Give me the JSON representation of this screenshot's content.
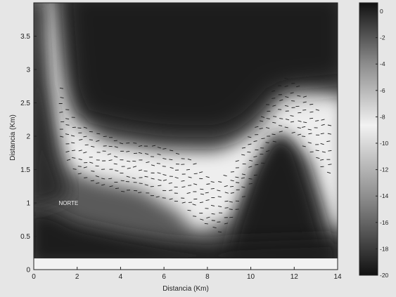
{
  "chart_data": {
    "type": "heatmap",
    "xlabel": "Distancia (Km)",
    "ylabel": "Distancia (Km)",
    "xlim": [
      0,
      14
    ],
    "ylim": [
      0,
      4
    ],
    "x_ticks": [
      0,
      2,
      4,
      6,
      8,
      10,
      12,
      14
    ],
    "x_tick_labels": [
      "0",
      "2",
      "4",
      "6",
      "8",
      "10",
      "12",
      "14"
    ],
    "y_ticks": [
      0,
      0.5,
      1,
      1.5,
      2,
      2.5,
      3,
      3.5
    ],
    "y_tick_labels": [
      "0",
      "0.5",
      "1",
      "1.5",
      "2",
      "2.5",
      "3",
      "3.5"
    ],
    "colorbar": {
      "range": [
        -20,
        0
      ],
      "ticks": [
        0,
        -2,
        -4,
        -6,
        -8,
        -10,
        -12,
        -14,
        -16,
        -18,
        -20
      ],
      "tick_labels": [
        "0",
        "-2",
        "-4",
        "-6",
        "-8",
        "-10",
        "-12",
        "-14",
        "-16",
        "-18",
        "-20"
      ],
      "colors": [
        "#111111",
        "#f2f2f2",
        "#111111"
      ]
    },
    "annotations": [
      {
        "text": "NORTE",
        "x": 1.6,
        "y": 0.97
      }
    ],
    "bright_band": {
      "label": "approximate centre line (km) of the light band",
      "x": [
        0.0,
        0.5,
        1.0,
        1.5,
        2.0,
        3.0,
        4.0,
        5.0,
        6.0,
        7.0,
        8.0,
        8.5,
        9.0,
        10.0,
        11.0,
        11.5,
        12.0,
        13.0,
        14.0
      ],
      "y": [
        4.0,
        3.6,
        2.6,
        2.0,
        1.8,
        1.65,
        1.55,
        1.5,
        1.45,
        1.3,
        1.0,
        0.95,
        1.1,
        1.7,
        2.3,
        2.5,
        2.4,
        2.0,
        1.6
      ]
    },
    "dark_regions": [
      {
        "label": "upper dark field",
        "x": [
          1.5,
          13
        ],
        "y": [
          2.0,
          4.0
        ]
      },
      {
        "label": "dark hump",
        "x": [
          9.8,
          13.2
        ],
        "y": [
          0.2,
          2.1
        ]
      },
      {
        "label": "lower dark field",
        "x": [
          0,
          14
        ],
        "y": [
          0.2,
          0.6
        ]
      }
    ]
  }
}
